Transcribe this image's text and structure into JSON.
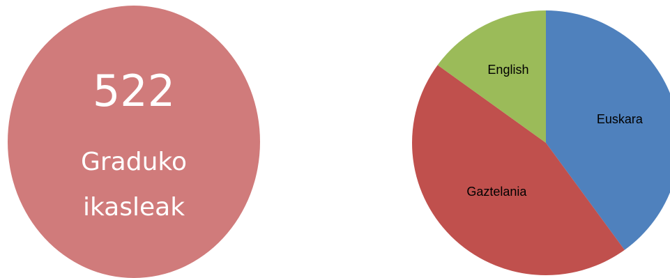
{
  "stat": {
    "value": "522",
    "label_line1": "Graduko",
    "label_line2": "ikasleak",
    "color": "#d07b7b"
  },
  "chart_data": {
    "type": "pie",
    "title": "",
    "slices": [
      {
        "label": "Euskara",
        "value": 40,
        "color": "#4f81bd"
      },
      {
        "label": "Gaztelania",
        "value": 45,
        "color": "#c0504d"
      },
      {
        "label": "English",
        "value": 15,
        "color": "#9bbb59"
      }
    ]
  }
}
